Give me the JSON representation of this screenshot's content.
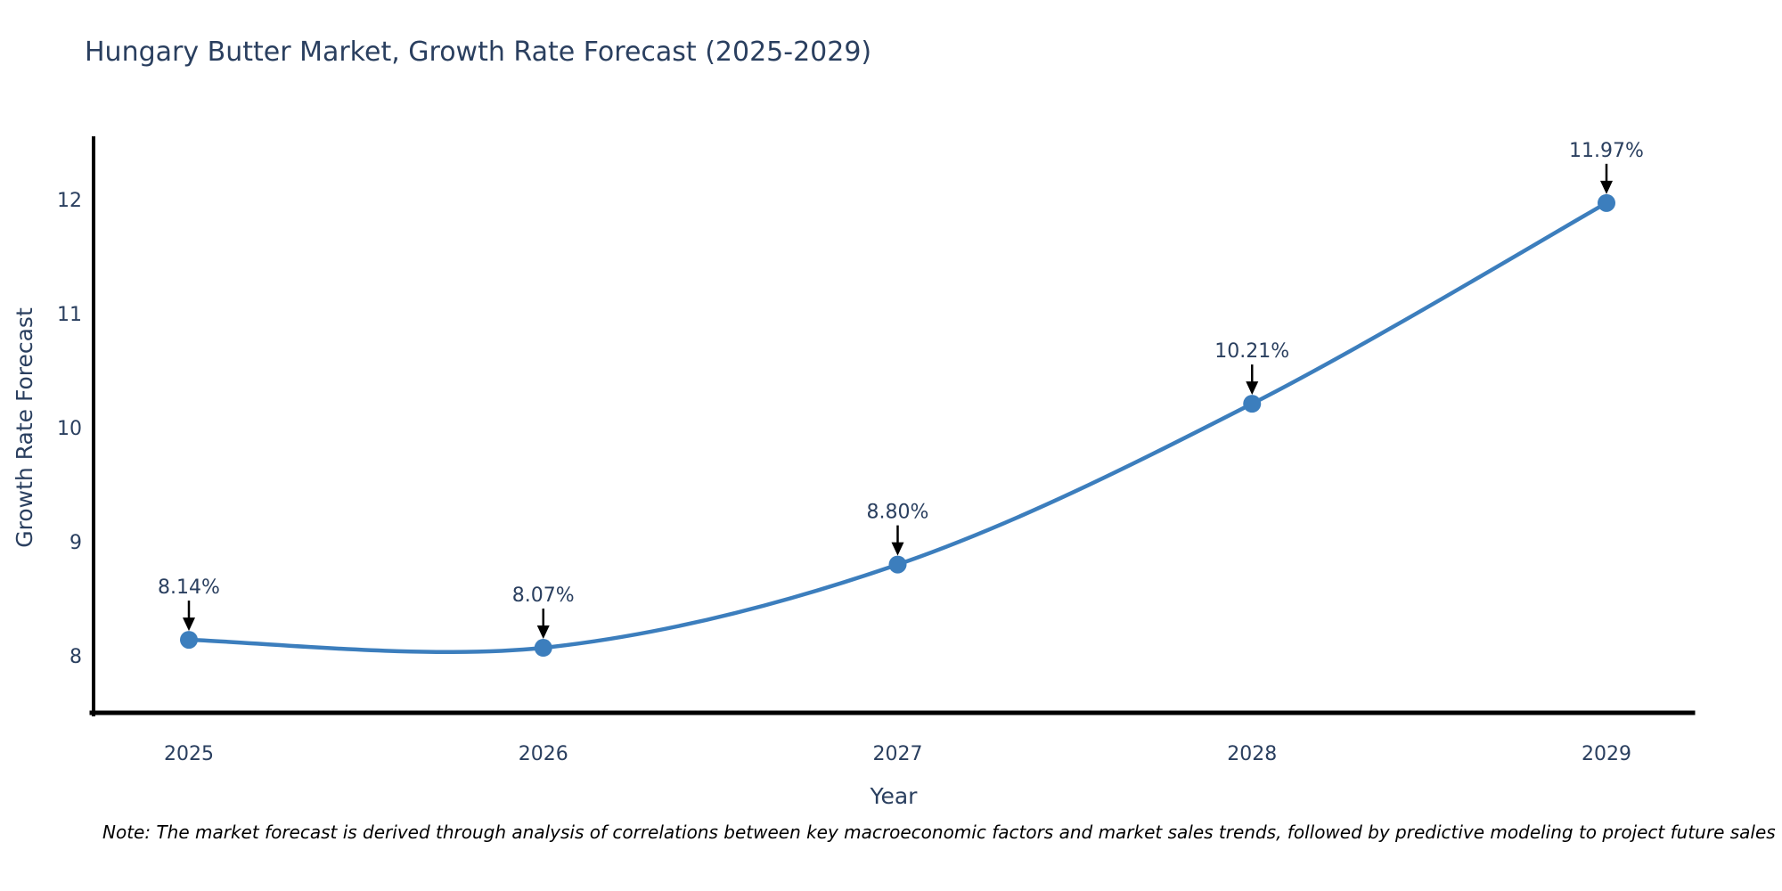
{
  "chart_data": {
    "type": "line",
    "title": "Hungary Butter Market, Growth Rate Forecast (2025-2029)",
    "xlabel": "Year",
    "ylabel": "Growth Rate Forecast",
    "x": [
      2025,
      2026,
      2027,
      2028,
      2029
    ],
    "y": [
      8.14,
      8.07,
      8.8,
      10.21,
      11.97
    ],
    "point_labels": [
      "8.14%",
      "8.07%",
      "8.80%",
      "10.21%",
      "11.97%"
    ],
    "xticks": [
      "2025",
      "2026",
      "2027",
      "2028",
      "2029"
    ],
    "yticks": [
      "8",
      "9",
      "10",
      "11",
      "12"
    ],
    "ytick_values": [
      8,
      9,
      10,
      11,
      12
    ],
    "ylim": [
      7.5,
      12.5
    ],
    "line_shape": "spline",
    "markers": true,
    "grid": false,
    "legend": false,
    "annotations_have_arrows": true,
    "note": "Note: The market forecast is derived through analysis of correlations between key macroeconomic factors and market sales trends, followed by predictive modeling to project future sales",
    "colors": {
      "line": "#3C7EBD",
      "marker": "#3C7EBD",
      "axis": "#000000",
      "text": "#2A3F5F",
      "annotation_text": "#2A3F5F",
      "annotation_arrow": "#000000",
      "note_text": "#000000",
      "background": "#FFFFFF"
    }
  }
}
